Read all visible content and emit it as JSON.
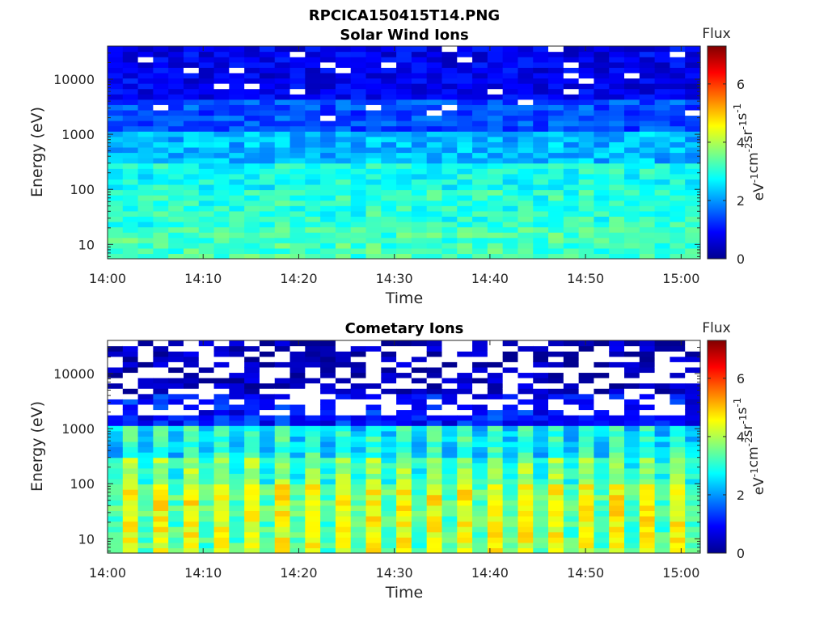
{
  "figure_title": "RPCICA150415T14.PNG",
  "colors": {
    "jet": [
      "#00008f",
      "#0000ff",
      "#00ffff",
      "#ffff00",
      "#ff0000",
      "#800000"
    ],
    "no_data": "#ffffff"
  },
  "chart_data": [
    {
      "type": "heatmap",
      "title": "Solar Wind Ions",
      "xlabel": "Time",
      "ylabel": "Energy (eV)",
      "x_ticks": [
        "14:00",
        "14:10",
        "14:20",
        "14:30",
        "14:40",
        "14:50",
        "15:00"
      ],
      "x_range_minutes": [
        0,
        62
      ],
      "y_ticks": [
        "10",
        "100",
        "1000",
        "10000"
      ],
      "y_scale": "log",
      "y_range": [
        5.5,
        40000
      ],
      "colorbar": {
        "title": "Flux",
        "label_parts": [
          "eV",
          "-1",
          "cm",
          "-2",
          "sr",
          "-1",
          "s",
          "-1"
        ],
        "ticks": [
          "0",
          "2",
          "4",
          "6"
        ],
        "range": [
          0,
          7.3
        ]
      },
      "time_step_minutes": 3.2,
      "description_profile": "flux high (~2.5-4) at low energy, falling to ~0.5-1 above 3 keV",
      "bands": [
        {
          "log_e_min": 0.74,
          "log_e_max": 1.3,
          "level": 3.3
        },
        {
          "log_e_min": 1.3,
          "log_e_max": 2.0,
          "level": 3.1
        },
        {
          "log_e_min": 2.0,
          "log_e_max": 2.5,
          "level": 2.9
        },
        {
          "log_e_min": 2.5,
          "log_e_max": 3.1,
          "level": 2.3
        },
        {
          "log_e_min": 3.1,
          "log_e_max": 3.6,
          "level": 1.5
        },
        {
          "log_e_min": 3.6,
          "log_e_max": 4.6,
          "level": 0.8
        }
      ]
    },
    {
      "type": "heatmap",
      "title": "Cometary Ions",
      "xlabel": "Time",
      "ylabel": "Energy (eV)",
      "x_ticks": [
        "14:00",
        "14:10",
        "14:20",
        "14:30",
        "14:40",
        "14:50",
        "15:00"
      ],
      "x_range_minutes": [
        0,
        62
      ],
      "y_ticks": [
        "10",
        "100",
        "1000",
        "10000"
      ],
      "y_scale": "log",
      "y_range": [
        5.5,
        40000
      ],
      "colorbar": {
        "title": "Flux",
        "label_parts": [
          "eV",
          "-1",
          "cm",
          "-2",
          "sr",
          "-1",
          "s",
          "-1"
        ],
        "ticks": [
          "0",
          "2",
          "4",
          "6"
        ],
        "range": [
          0,
          7.3
        ]
      },
      "time_step_minutes": 3.2,
      "description_profile": "flux high (~4.5-5.5) below ~100 eV in pulses, sparse/no-data above 3 keV",
      "bands": [
        {
          "log_e_min": 0.74,
          "log_e_max": 1.3,
          "level": 4.5
        },
        {
          "log_e_min": 1.3,
          "log_e_max": 2.0,
          "level": 4.6
        },
        {
          "log_e_min": 2.0,
          "log_e_max": 2.5,
          "level": 3.9
        },
        {
          "log_e_min": 2.5,
          "log_e_max": 3.1,
          "level": 3.2
        },
        {
          "log_e_min": 3.1,
          "log_e_max": 3.6,
          "level": 1.2
        },
        {
          "log_e_min": 3.6,
          "log_e_max": 4.6,
          "level": 0.4
        }
      ]
    }
  ]
}
